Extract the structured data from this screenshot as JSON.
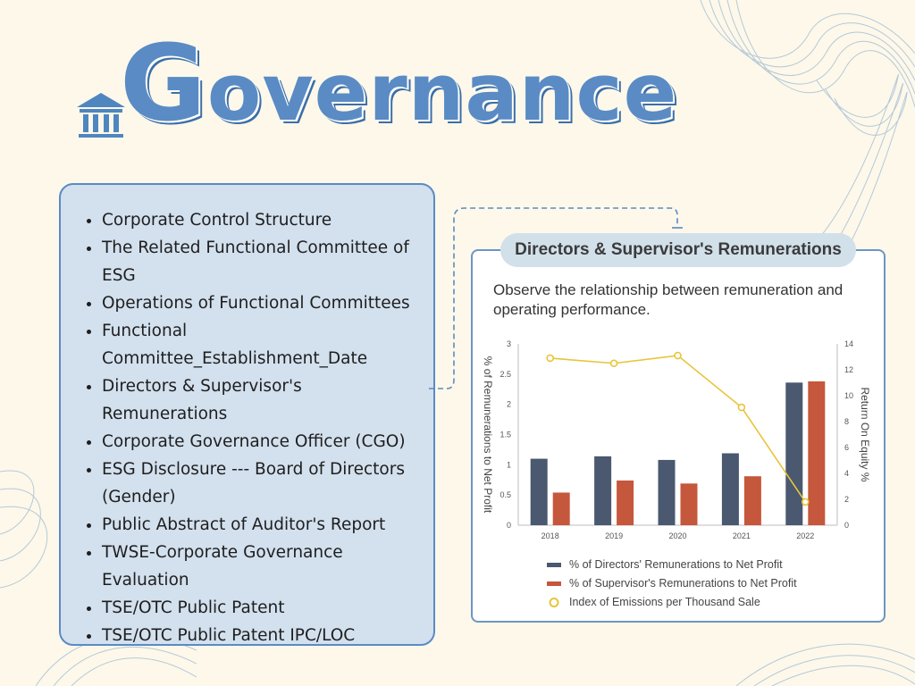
{
  "page": {
    "title": "Governance",
    "menu_items": [
      "Corporate Control Structure",
      "The Related Functional Committee of ESG",
      "Operations of Functional Committees",
      "Functional Committee_Establishment_Date",
      "Directors & Supervisor's Remunerations",
      "Corporate Governance Officer (CGO)",
      "ESG Disclosure --- Board of Directors (Gender)",
      "Public Abstract of Auditor's Report",
      "TWSE-Corporate Governance Evaluation",
      "TSE/OTC Public Patent",
      "TSE/OTC Public Patent IPC/LOC"
    ]
  },
  "colors": {
    "accent": "#5a8bc4",
    "directors_bar": "#4a5870",
    "supervisors_bar": "#c5573c",
    "index_line": "#e8c43a"
  },
  "chart_data": {
    "type": "bar",
    "title": "Directors & Supervisor's Remunerations",
    "subtitle": "Observe the relationship between remuneration and operating performance.",
    "categories": [
      "2018",
      "2019",
      "2020",
      "2021",
      "2022"
    ],
    "ylabel": "% of Remunerations to Net Profit",
    "y2label": "Return On Equity %",
    "ylim": [
      0,
      3
    ],
    "y2lim": [
      0,
      14
    ],
    "yticks": [
      "0",
      "0.5",
      "1",
      "1.5",
      "2",
      "2.5",
      "3"
    ],
    "y2ticks": [
      "0",
      "2",
      "4",
      "6",
      "8",
      "10",
      "12",
      "14"
    ],
    "series": [
      {
        "name": "% of Directors' Remunerations to Net Profit",
        "kind": "bar",
        "values": [
          1.1,
          1.14,
          1.08,
          1.19,
          2.36
        ]
      },
      {
        "name": "% of Supervisor's Remunerations to Net Profit",
        "kind": "bar",
        "values": [
          0.54,
          0.74,
          0.69,
          0.81,
          2.38
        ]
      },
      {
        "name": "Index of Emissions per Thousand Sale",
        "kind": "line",
        "axis": "right",
        "values": [
          12.9,
          12.5,
          13.1,
          9.1,
          1.8
        ]
      }
    ],
    "legend_position": "bottom",
    "grid": false
  }
}
